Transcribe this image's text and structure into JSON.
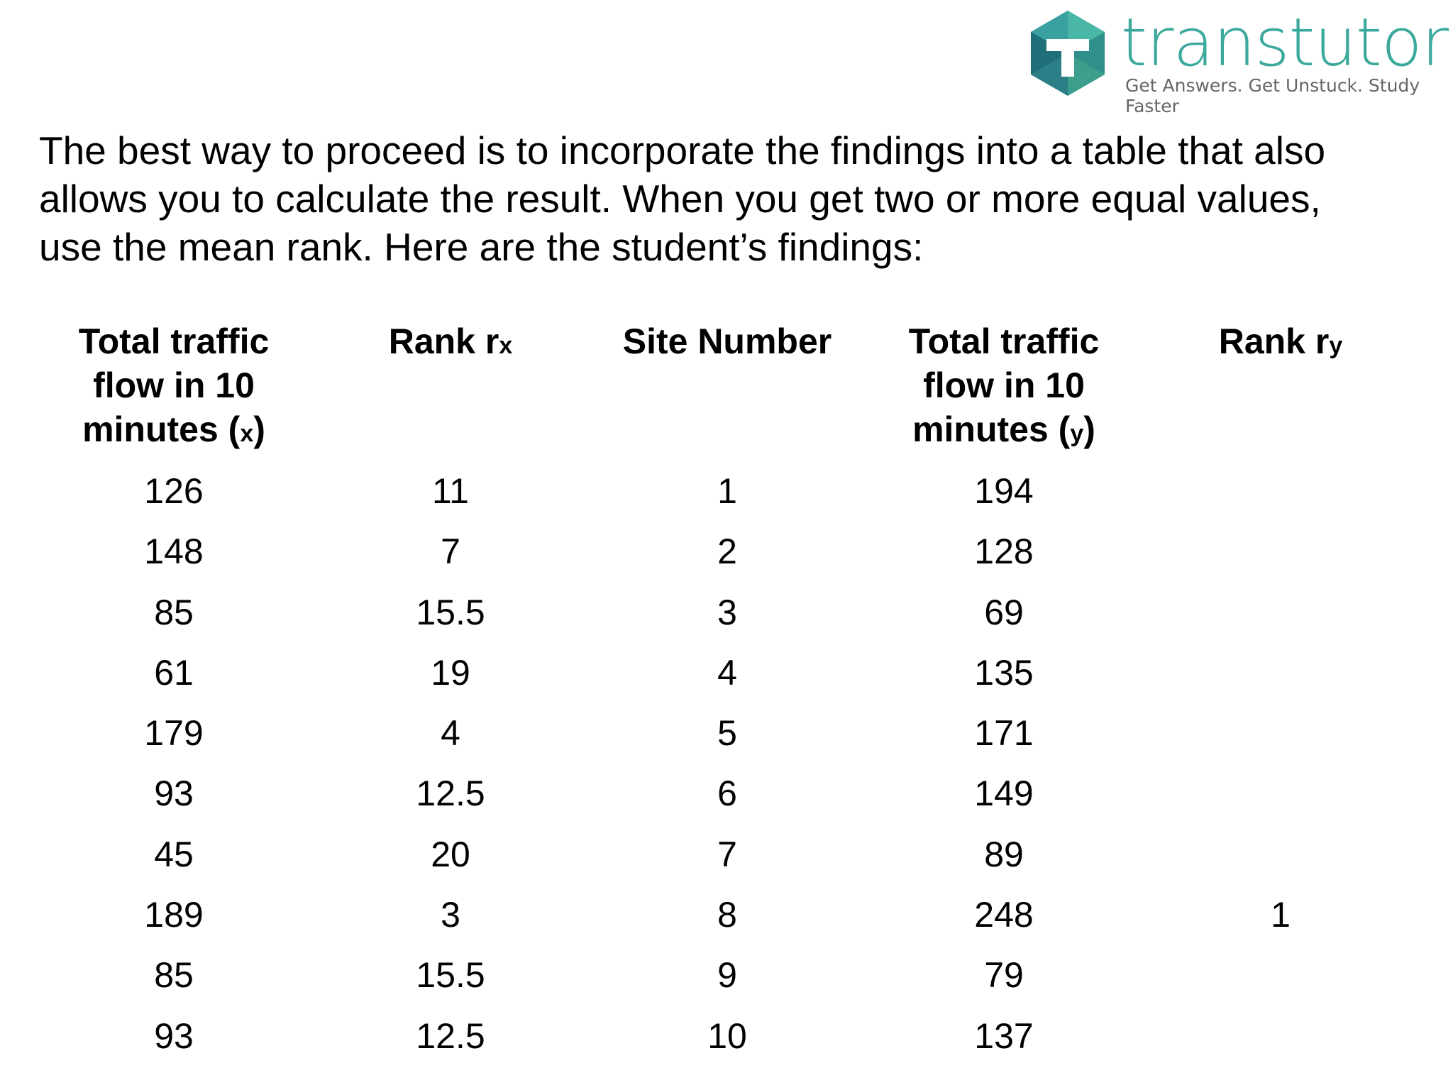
{
  "logo": {
    "brand": "transtutors",
    "tagline": "Get Answers. Get Unstuck. Study Faster"
  },
  "intro": {
    "lines": [
      "The best way to proceed is to incorporate the findings into a table that also",
      "allows you to calculate the result.  When you get two or more equal values,",
      "use the mean rank. Here are the student’s findings:"
    ]
  },
  "table": {
    "headers": [
      [
        {
          "t": "Total traffic flow in 10 minutes ("
        },
        {
          "t": "x",
          "small": true
        },
        {
          "t": ")"
        }
      ],
      [
        {
          "t": "Rank r"
        },
        {
          "t": "x",
          "small": true
        }
      ],
      [
        {
          "t": "Site Number"
        }
      ],
      [
        {
          "t": "Total traffic flow in 10 minutes ("
        },
        {
          "t": "y",
          "small": true
        },
        {
          "t": ")"
        }
      ],
      [
        {
          "t": "Rank r"
        },
        {
          "t": "y",
          "small": true
        }
      ]
    ],
    "rows": [
      [
        126,
        11,
        1,
        194,
        null
      ],
      [
        148,
        7,
        2,
        128,
        null
      ],
      [
        85,
        15.5,
        3,
        69,
        null
      ],
      [
        61,
        19,
        4,
        135,
        null
      ],
      [
        179,
        4,
        5,
        171,
        null
      ],
      [
        93,
        12.5,
        6,
        149,
        null
      ],
      [
        45,
        20,
        7,
        89,
        null
      ],
      [
        189,
        3,
        8,
        248,
        1
      ],
      [
        85,
        15.5,
        9,
        79,
        null
      ],
      [
        93,
        12.5,
        10,
        137,
        null
      ]
    ]
  }
}
